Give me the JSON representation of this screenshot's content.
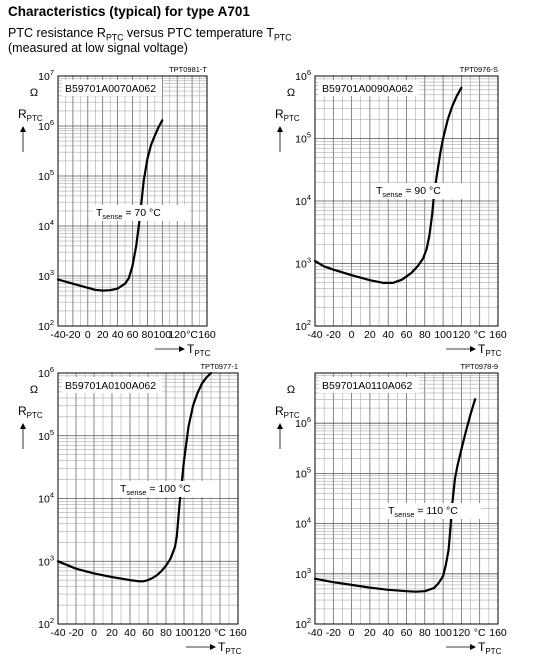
{
  "header": {
    "title": "Characteristics (typical) for type A701",
    "subtitle_line1_a": "PTC resistance R",
    "subtitle_line1_sub1": "PTC",
    "subtitle_line1_b": " versus PTC temperature T",
    "subtitle_line1_sub2": "PTC",
    "subtitle_line2": "(measured at low signal voltage)"
  },
  "axis_labels": {
    "y_main": "R",
    "y_sub": "PTC",
    "y_unit": "Ω",
    "x_main": "T",
    "x_sub": "PTC",
    "x_unit": "°C"
  },
  "colors": {
    "curve": "#000000",
    "grid_major": "#555555",
    "grid_minor": "#9a9a9a",
    "background": "#ffffff"
  },
  "chart_data": [
    {
      "type": "line",
      "code": "TPT0981-T",
      "part_number": "B59701A0070A062",
      "annotation_main": "T",
      "annotation_sub": "sense",
      "annotation_value": " = 70 °C",
      "yscale": "log",
      "ylim": [
        100,
        10000000
      ],
      "xlim": [
        -40,
        160
      ],
      "y_tick_exponents": [
        2,
        3,
        4,
        5,
        6,
        7
      ],
      "x_ticks": [
        "-40",
        "-20",
        "0",
        "20",
        "40",
        "60",
        "80",
        "100",
        "120",
        "",
        "160"
      ],
      "x": [
        -40,
        -20,
        0,
        10,
        20,
        30,
        40,
        50,
        55,
        60,
        65,
        70,
        75,
        80,
        85,
        90,
        95,
        100
      ],
      "y": [
        850,
        700,
        580,
        530,
        510,
        520,
        560,
        700,
        900,
        1600,
        4000,
        15000,
        80000,
        220000,
        420000,
        650000,
        950000,
        1300000
      ]
    },
    {
      "type": "line",
      "code": "TPT0976-S",
      "part_number": "B59701A0090A062",
      "annotation_main": "T",
      "annotation_sub": "sense",
      "annotation_value": " = 90 °C",
      "yscale": "log",
      "ylim": [
        100,
        1000000
      ],
      "xlim": [
        -40,
        160
      ],
      "y_tick_exponents": [
        2,
        3,
        4,
        5,
        6
      ],
      "x_ticks": [
        "-40",
        "-20",
        "0",
        "20",
        "40",
        "60",
        "80",
        "100",
        "120",
        "",
        "160"
      ],
      "x": [
        -40,
        -30,
        -20,
        0,
        20,
        35,
        45,
        55,
        65,
        72,
        78,
        82,
        85,
        88,
        90,
        93,
        97,
        100,
        105,
        110,
        115,
        120
      ],
      "y": [
        1100,
        900,
        800,
        650,
        540,
        490,
        490,
        550,
        700,
        900,
        1200,
        1700,
        2800,
        6000,
        12000,
        25000,
        60000,
        100000,
        200000,
        330000,
        480000,
        650000
      ]
    },
    {
      "type": "line",
      "code": "TPT0977-1",
      "part_number": "B59701A0100A062",
      "annotation_main": "T",
      "annotation_sub": "sense",
      "annotation_value": " = 100 °C",
      "yscale": "log",
      "ylim": [
        100,
        1000000
      ],
      "xlim": [
        -40,
        160
      ],
      "y_tick_exponents": [
        2,
        3,
        4,
        5,
        6
      ],
      "x_ticks": [
        "-40",
        "-20",
        "0",
        "20",
        "40",
        "60",
        "80",
        "100",
        "120",
        "",
        "160"
      ],
      "x": [
        -40,
        -20,
        0,
        20,
        40,
        50,
        55,
        60,
        65,
        70,
        75,
        80,
        85,
        90,
        92,
        95,
        100,
        105,
        110,
        115,
        120,
        125,
        130
      ],
      "y": [
        1000,
        760,
        640,
        560,
        500,
        480,
        480,
        500,
        540,
        600,
        700,
        850,
        1100,
        1700,
        2500,
        8000,
        40000,
        140000,
        300000,
        480000,
        680000,
        850000,
        1000000
      ]
    },
    {
      "type": "line",
      "code": "TPT0978-9",
      "part_number": "B59701A0110A062",
      "annotation_main": "T",
      "annotation_sub": "sense",
      "annotation_value": " = 110 °C",
      "yscale": "log",
      "ylim": [
        100,
        10000000
      ],
      "xlim": [
        -40,
        160
      ],
      "y_tick_exponents": [
        2,
        3,
        4,
        5,
        6
      ],
      "x_ticks": [
        "-40",
        "-20",
        "0",
        "20",
        "40",
        "60",
        "80",
        "100",
        "120",
        "",
        "160"
      ],
      "x": [
        -40,
        -20,
        0,
        20,
        40,
        60,
        70,
        80,
        90,
        95,
        100,
        103,
        106,
        108,
        110,
        113,
        116,
        120,
        125,
        130,
        135
      ],
      "y": [
        800,
        680,
        600,
        530,
        480,
        450,
        440,
        450,
        520,
        650,
        900,
        1500,
        3000,
        8000,
        25000,
        80000,
        150000,
        300000,
        700000,
        1500000,
        3000000
      ]
    }
  ]
}
